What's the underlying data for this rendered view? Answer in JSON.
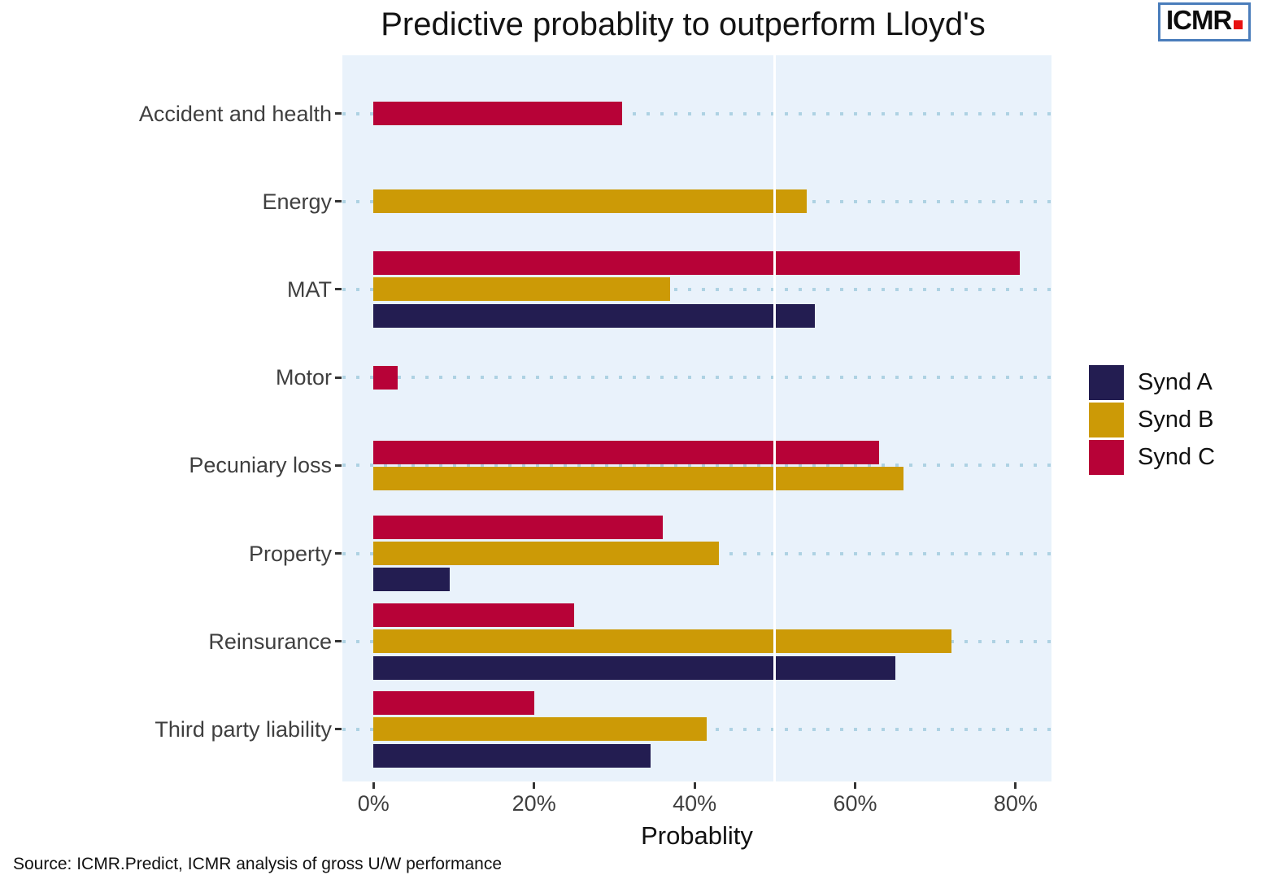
{
  "title": "Predictive probablity to outperform Lloyd's",
  "logo": {
    "text": "ICMR"
  },
  "source": "Source: ICMR.Predict, ICMR analysis of gross U/W performance",
  "colors": {
    "synd_a": "#231d51",
    "synd_b": "#cc9a06",
    "synd_c": "#b70237",
    "panel_background": "#e9f2fb",
    "dotted_grid": "#aed2e3",
    "reference_line": "#ffffff",
    "logo_border": "#4a7dbb",
    "logo_dot": "#e81111",
    "axis_text": "#3f3f3f"
  },
  "chart_data": {
    "type": "bar",
    "orientation": "horizontal",
    "title": "Predictive probablity to outperform Lloyd's",
    "xlabel": "Probablity",
    "ylabel": "",
    "xlim": [
      0,
      84
    ],
    "x_ticks": [
      {
        "value": 0,
        "label": "0%"
      },
      {
        "value": 20,
        "label": "20%"
      },
      {
        "value": 40,
        "label": "40%"
      },
      {
        "value": 60,
        "label": "60%"
      },
      {
        "value": 80,
        "label": "80%"
      }
    ],
    "reference_line_value": 50,
    "grid": "dotted horizontal line per category; solid white vertical line at 50% drawn over bars",
    "legend_position": "right",
    "categories": [
      "Accident and health",
      "Energy",
      "MAT",
      "Motor",
      "Pecuniary loss",
      "Property",
      "Reinsurance",
      "Third party liability"
    ],
    "series": [
      {
        "name": "Synd A",
        "color": "#231d51",
        "values": [
          null,
          null,
          55,
          null,
          null,
          9.5,
          65,
          34.5
        ]
      },
      {
        "name": "Synd B",
        "color": "#cc9a06",
        "values": [
          null,
          54,
          37,
          null,
          66,
          43,
          72,
          41.5
        ]
      },
      {
        "name": "Synd C",
        "color": "#b70237",
        "values": [
          31,
          null,
          80.5,
          3,
          63,
          36,
          25,
          20
        ]
      }
    ]
  }
}
